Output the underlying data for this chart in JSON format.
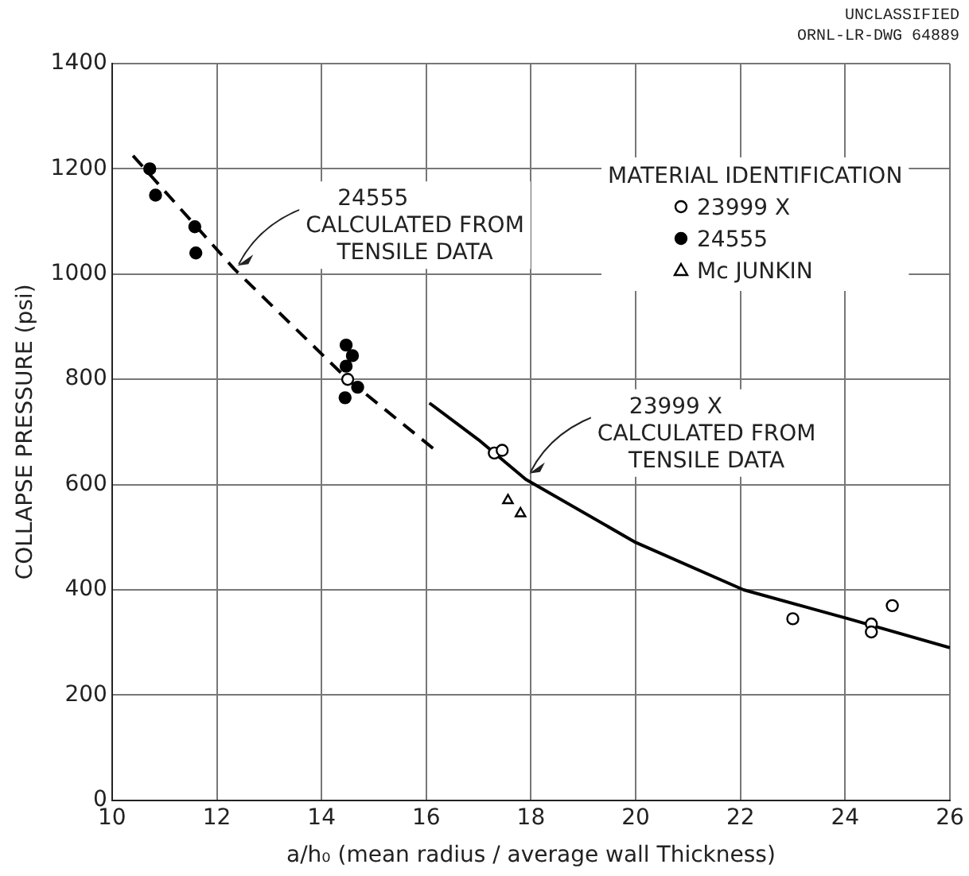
{
  "chart_data": {
    "type": "scatter",
    "xlabel": "a/h₀ (mean radius / average wall Thickness)",
    "ylabel": "COLLAPSE PRESSURE (psi)",
    "legend_title": "MATERIAL IDENTIFICATION",
    "xlim": [
      10,
      26
    ],
    "xticks": [
      10,
      12,
      14,
      16,
      18,
      20,
      22,
      24,
      26
    ],
    "ylim": [
      0,
      1400
    ],
    "yticks": [
      0,
      200,
      400,
      600,
      800,
      1000,
      1200,
      1400
    ],
    "grid": true,
    "legend": "top right",
    "series": [
      {
        "name": "23999 X",
        "color": "#ffffff",
        "marker": "circle",
        "x": [
          14.5,
          17.3,
          17.45,
          23.0,
          24.5,
          24.5,
          24.9
        ],
        "values": [
          800,
          660,
          665,
          345,
          335,
          320,
          370
        ]
      },
      {
        "name": "24555",
        "color": "#000000",
        "marker": "circle",
        "x": [
          10.72,
          10.83,
          11.58,
          11.6,
          14.47,
          14.59,
          14.47,
          14.69,
          14.45
        ],
        "values": [
          1200,
          1150,
          1090,
          1040,
          865,
          845,
          825,
          785,
          765
        ]
      },
      {
        "name": "Mc JUNKIN",
        "color": "#ffffff",
        "marker": "triangle",
        "x": [
          17.56,
          17.8
        ],
        "values": [
          570,
          545
        ]
      },
      {
        "type": "line",
        "color": "#000000",
        "marker": "none",
        "line_style": "dashed",
        "x": [
          10.4,
          12.33,
          14.5,
          16.24
        ],
        "values": [
          1225,
          1010,
          800,
          660
        ]
      },
      {
        "type": "line",
        "color": "#000000",
        "marker": "none",
        "line_style": "solid",
        "x": [
          16.06,
          17.0,
          17.9,
          20.0,
          22.06,
          24.06,
          26.0
        ],
        "values": [
          755,
          685,
          610,
          490,
          400,
          345,
          290
        ]
      }
    ],
    "annotations": [
      {
        "text": "24555\nCALCULATED FROM\nTENSILE DATA",
        "x": 12.33,
        "y": 1010
      },
      {
        "text": "23999 X\nCALCULATED FROM\nTENSILE DATA",
        "x": 17.9,
        "y": 615
      },
      "UNCLASSIFIED",
      "ORNL-LR-DWG 64889"
    ]
  }
}
